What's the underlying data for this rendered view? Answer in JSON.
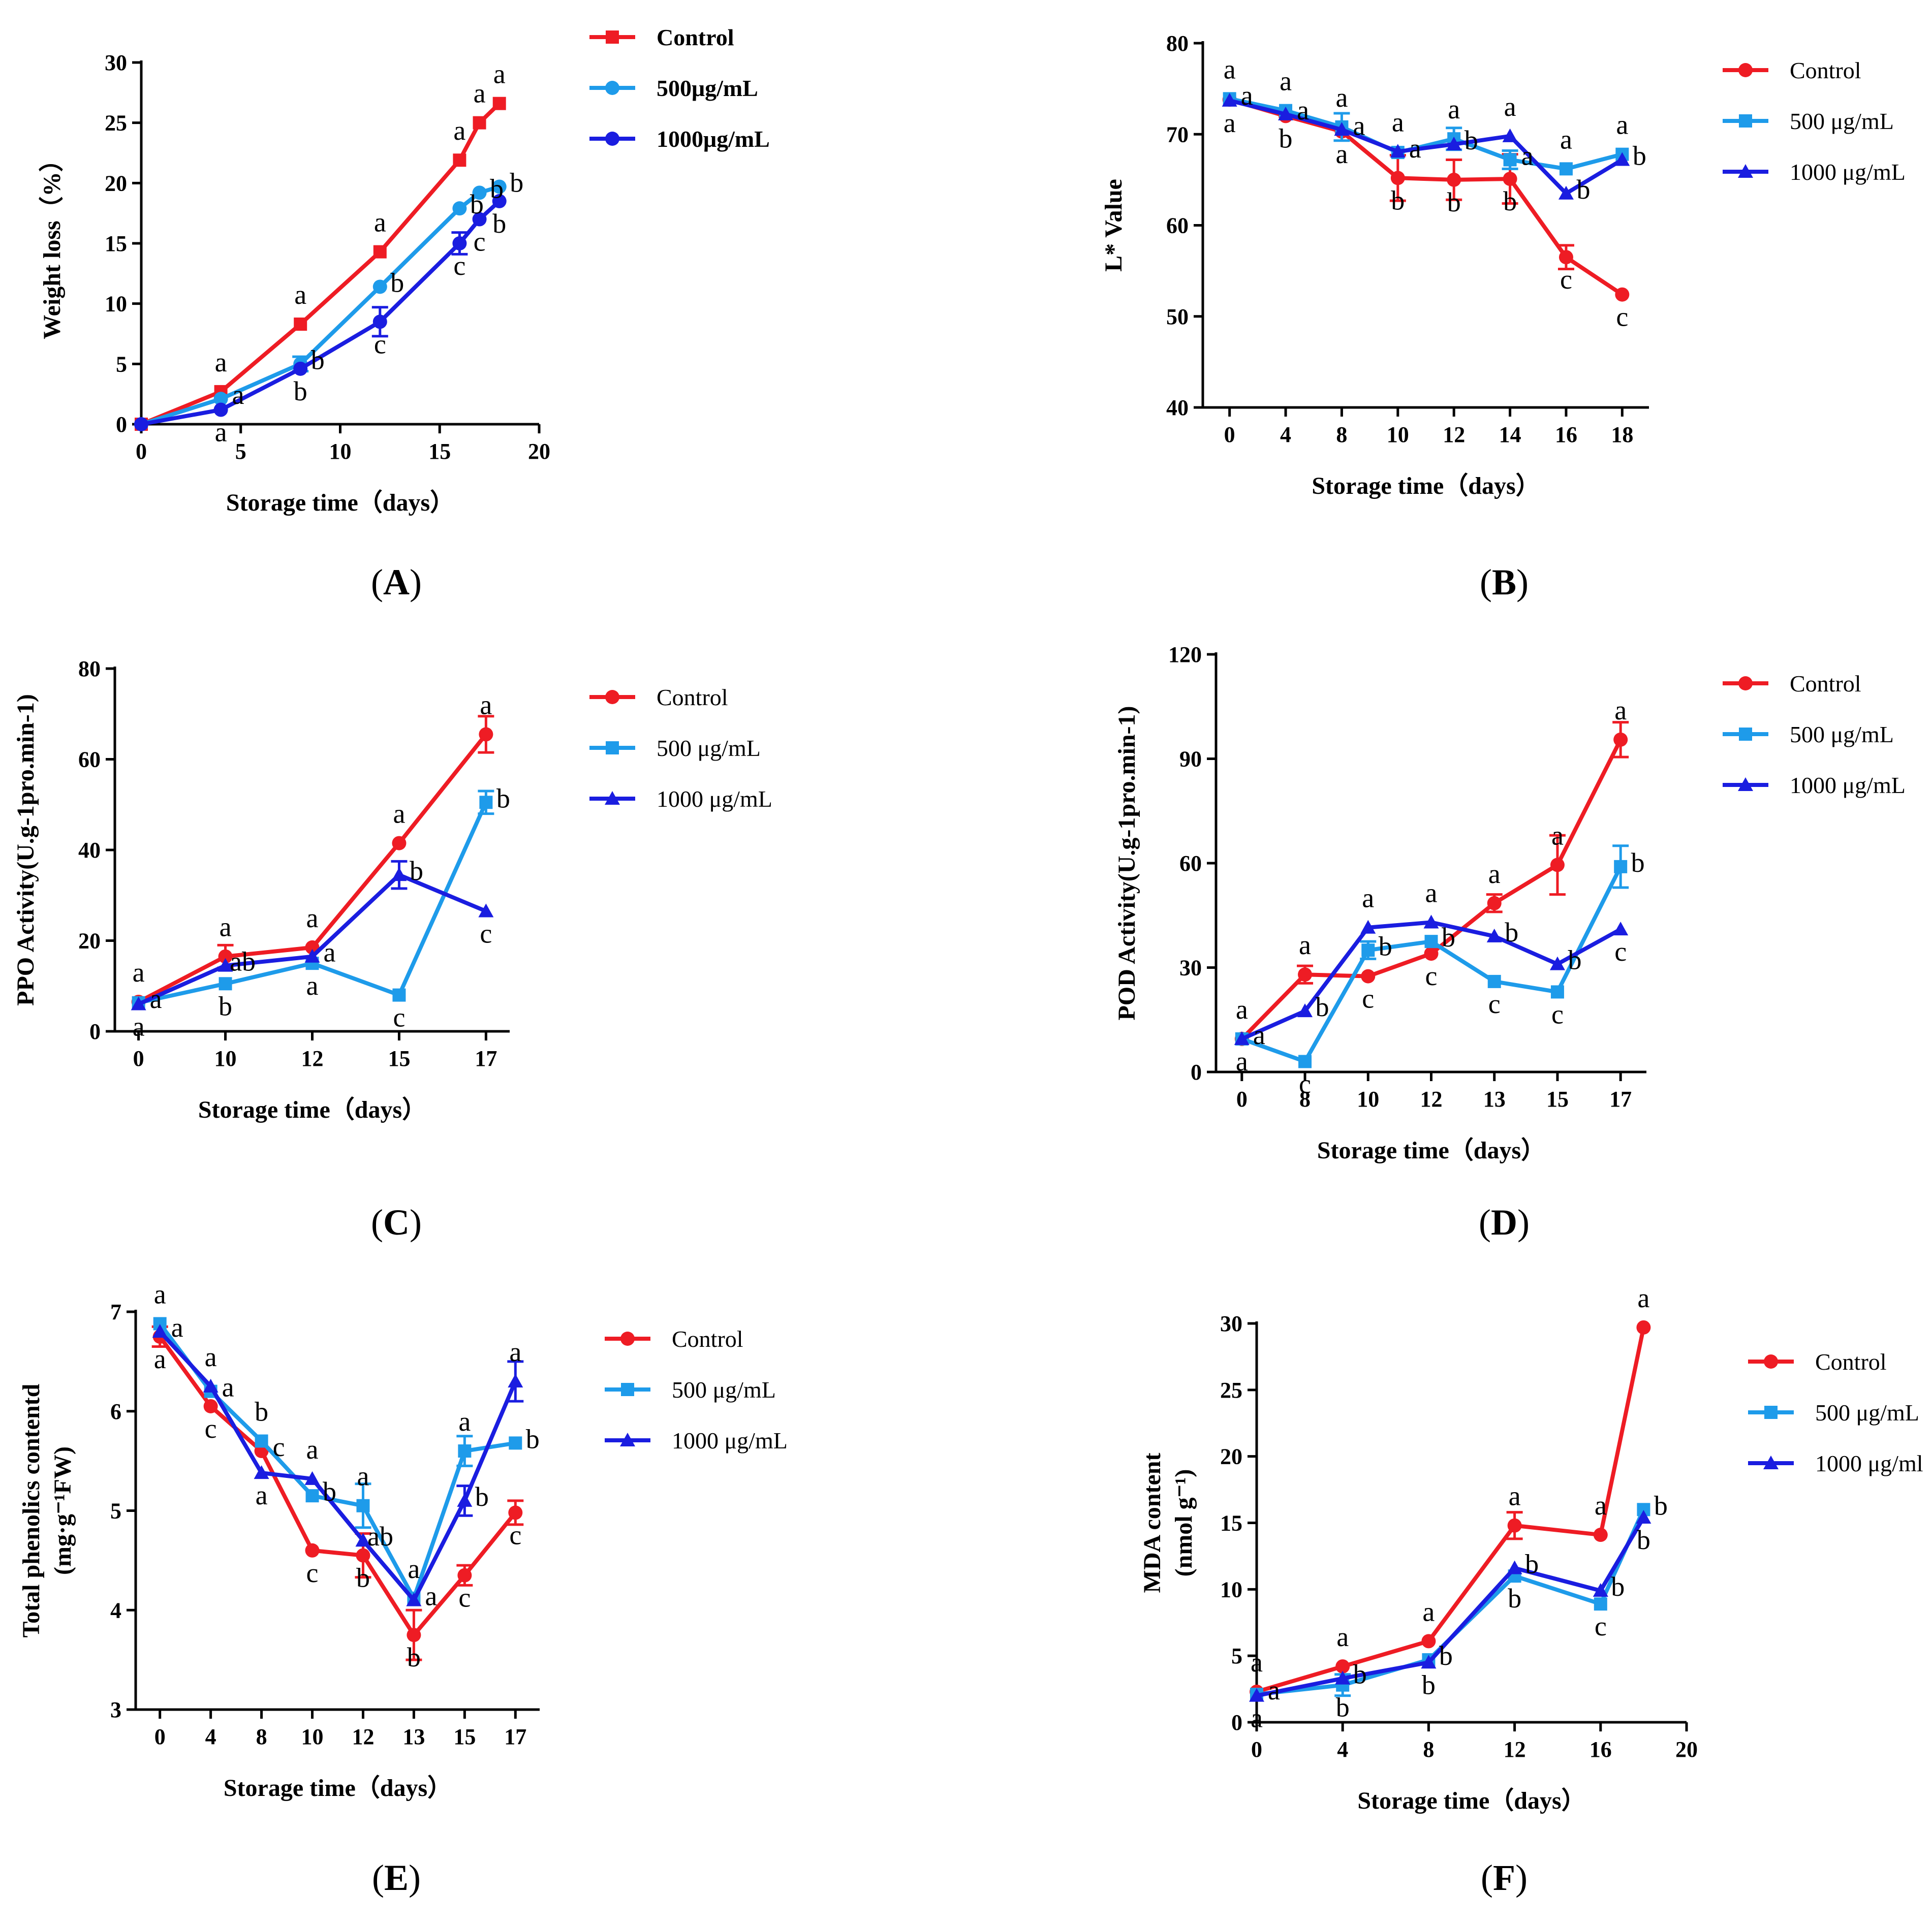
{
  "colors": {
    "control": "#ee1c24",
    "c500": "#1e9bea",
    "c1000": "#1a1de0"
  },
  "captions": [
    "A",
    "B",
    "C",
    "D",
    "E",
    "F"
  ],
  "chart_data": [
    {
      "id": "A",
      "type": "line",
      "title": "",
      "xlabel": "Storage time（days）",
      "ylabel": "Weight loss（%）",
      "xscale": "linear",
      "xlim": [
        0,
        20
      ],
      "ylim": [
        0,
        30
      ],
      "xticks": [
        0,
        5,
        10,
        15,
        20
      ],
      "xtick_labels": [
        "0",
        "5",
        "10",
        "15",
        "20"
      ],
      "yticks": [
        0,
        5,
        10,
        15,
        20,
        25,
        30
      ],
      "ytick_labels": [
        "0",
        "5",
        "10",
        "15",
        "20",
        "25",
        "30"
      ],
      "legend_bold": true,
      "series": [
        {
          "name": "Control",
          "color_key": "control",
          "marker": "square",
          "x": [
            0,
            4,
            8,
            12,
            16,
            17,
            18
          ],
          "y": [
            0,
            2.7,
            8.3,
            14.3,
            21.9,
            25.0,
            26.6
          ],
          "err": [
            0,
            0,
            0,
            0,
            0,
            0,
            0
          ],
          "letters": [
            "",
            "a",
            "a",
            "a",
            "a",
            "a",
            "a"
          ]
        },
        {
          "name": "500μg/mL",
          "color_key": "c500",
          "marker": "circle",
          "x": [
            0,
            4,
            8,
            12,
            16,
            17,
            18
          ],
          "y": [
            0,
            2.1,
            5.0,
            11.4,
            17.9,
            19.2,
            19.7
          ],
          "err": [
            0,
            0,
            0.6,
            0,
            0,
            0,
            0
          ],
          "letters": [
            "",
            "a",
            "b",
            "b",
            "b",
            "b",
            "b"
          ]
        },
        {
          "name": "1000μg/mL",
          "color_key": "c1000",
          "marker": "circle",
          "x": [
            0,
            4,
            8,
            12,
            16,
            17,
            18
          ],
          "y": [
            0,
            1.2,
            4.6,
            8.5,
            15.0,
            17.0,
            18.5
          ],
          "err": [
            0,
            0,
            0,
            1.2,
            0.9,
            0,
            0
          ],
          "letters": [
            "",
            "a",
            "b",
            "c",
            "c",
            "c",
            "b"
          ]
        }
      ]
    },
    {
      "id": "B",
      "type": "line",
      "title": "",
      "xlabel": "Storage time（days）",
      "ylabel": "L* Value",
      "xscale": "category",
      "ylim": [
        40,
        80
      ],
      "categories": [
        "0",
        "4",
        "8",
        "10",
        "12",
        "14",
        "16",
        "18"
      ],
      "yticks": [
        40,
        50,
        60,
        70,
        80
      ],
      "ytick_labels": [
        "40",
        "50",
        "60",
        "70",
        "80"
      ],
      "legend_bold": false,
      "series": [
        {
          "name": "Control",
          "color_key": "control",
          "marker": "circle",
          "y": [
            73.8,
            72.0,
            70.3,
            65.2,
            65.0,
            65.1,
            56.5,
            52.4
          ],
          "err": [
            0,
            0,
            0,
            2.5,
            2.2,
            2.7,
            1.3,
            0
          ],
          "letters": [
            "a",
            "b",
            "a",
            "b",
            "b",
            "b",
            "c",
            "c"
          ]
        },
        {
          "name": "500 μg/mL",
          "color_key": "c500",
          "marker": "square",
          "y": [
            73.9,
            72.6,
            70.8,
            68.0,
            69.5,
            67.2,
            66.2,
            67.8
          ],
          "err": [
            0,
            0,
            1.5,
            0,
            1.2,
            1.0,
            0,
            0
          ],
          "letters": [
            "a",
            "a",
            "a",
            "a",
            "a",
            "a",
            "a",
            "a"
          ]
        },
        {
          "name": "1000 μg/mL",
          "color_key": "c1000",
          "marker": "triangle",
          "y": [
            73.7,
            72.2,
            70.5,
            68.1,
            68.9,
            69.8,
            63.5,
            67.2
          ],
          "err": [
            0,
            0,
            0,
            0,
            0,
            0,
            0,
            0
          ],
          "letters": [
            "a",
            "a",
            "a",
            "a",
            "b",
            "a",
            "b",
            "b"
          ]
        }
      ]
    },
    {
      "id": "C",
      "type": "line",
      "title": "",
      "xlabel": "Storage time（days）",
      "ylabel": "PPO Activity(U.g-1pro.min-1)",
      "xscale": "category",
      "ylim": [
        0,
        80
      ],
      "categories": [
        "0",
        "10",
        "12",
        "15",
        "17"
      ],
      "yticks": [
        0,
        20,
        40,
        60,
        80
      ],
      "ytick_labels": [
        "0",
        "20",
        "40",
        "60",
        "80"
      ],
      "legend_bold": false,
      "series": [
        {
          "name": "Control",
          "color_key": "control",
          "marker": "circle",
          "y": [
            6.5,
            16.5,
            18.5,
            41.5,
            65.5
          ],
          "err": [
            0,
            2.5,
            0,
            0,
            4.0
          ],
          "letters": [
            "a",
            "a",
            "a",
            "a",
            "a"
          ]
        },
        {
          "name": "500 μg/mL",
          "color_key": "c500",
          "marker": "square",
          "y": [
            6.3,
            10.5,
            15.0,
            8.0,
            50.5
          ],
          "err": [
            0,
            0,
            0,
            0,
            2.5
          ],
          "letters": [
            "a",
            "b",
            "a",
            "c",
            "b"
          ]
        },
        {
          "name": "1000 μg/mL",
          "color_key": "c1000",
          "marker": "triangle",
          "y": [
            6.0,
            14.5,
            16.5,
            34.5,
            26.5
          ],
          "err": [
            0,
            0,
            0,
            3.0,
            0
          ],
          "letters": [
            "a",
            "ab",
            "a",
            "b",
            "c"
          ]
        }
      ]
    },
    {
      "id": "D",
      "type": "line",
      "title": "",
      "xlabel": "Storage time（days）",
      "ylabel": "POD Activity(U.g-1pro.min-1)",
      "xscale": "category",
      "ylim": [
        0,
        120
      ],
      "categories": [
        "0",
        "8",
        "10",
        "12",
        "13",
        "15",
        "17"
      ],
      "yticks": [
        0,
        30,
        60,
        90,
        120
      ],
      "ytick_labels": [
        "0",
        "30",
        "60",
        "90",
        "120"
      ],
      "legend_bold": false,
      "series": [
        {
          "name": "Control",
          "color_key": "control",
          "marker": "circle",
          "y": [
            9.5,
            28.0,
            27.5,
            34.0,
            48.5,
            59.5,
            95.5
          ],
          "err": [
            0,
            2.5,
            0,
            0,
            2.5,
            8.5,
            5.0
          ],
          "letters": [
            "a",
            "a",
            "c",
            "c",
            "a",
            "a",
            "a"
          ]
        },
        {
          "name": "500 μg/mL",
          "color_key": "c500",
          "marker": "square",
          "y": [
            9.5,
            3.0,
            35.0,
            37.5,
            26.0,
            23.0,
            59.0
          ],
          "err": [
            0,
            0,
            2.5,
            0,
            0,
            0,
            6.0
          ],
          "letters": [
            "a",
            "c",
            "b",
            "b",
            "c",
            "c",
            "b"
          ]
        },
        {
          "name": "1000 μg/mL",
          "color_key": "c1000",
          "marker": "triangle",
          "y": [
            9.5,
            17.5,
            41.5,
            43.0,
            39.0,
            31.0,
            41.0
          ],
          "err": [
            0,
            0,
            0,
            0,
            0,
            0,
            0
          ],
          "letters": [
            "a",
            "b",
            "a",
            "a",
            "b",
            "b",
            "c"
          ]
        }
      ]
    },
    {
      "id": "E",
      "type": "line",
      "title": "",
      "xlabel": "Storage time（days）",
      "ylabel": [
        "Total phenolics contentd",
        "(mg·g⁻¹FW)"
      ],
      "xscale": "category",
      "ylim": [
        3,
        7
      ],
      "categories": [
        "0",
        "4",
        "8",
        "10",
        "12",
        "13",
        "15",
        "17"
      ],
      "yticks": [
        3,
        4,
        5,
        6,
        7
      ],
      "ytick_labels": [
        "3",
        "4",
        "5",
        "6",
        "7"
      ],
      "legend_bold": false,
      "series": [
        {
          "name": "Control",
          "color_key": "control",
          "marker": "circle",
          "y": [
            6.75,
            6.05,
            5.6,
            4.6,
            4.55,
            3.75,
            4.35,
            4.98
          ],
          "err": [
            0.1,
            0,
            0,
            0,
            0.22,
            0.25,
            0.1,
            0.12
          ],
          "letters": [
            "a",
            "c",
            "c",
            "c",
            "b",
            "b",
            "c",
            "c"
          ]
        },
        {
          "name": "500 μg/mL",
          "color_key": "c500",
          "marker": "square",
          "y": [
            6.88,
            6.2,
            5.7,
            5.15,
            5.05,
            4.12,
            5.6,
            5.68
          ],
          "err": [
            0,
            0,
            0,
            0,
            0.22,
            0,
            0.15,
            0
          ],
          "letters": [
            "a",
            "a",
            "b",
            "b",
            "a",
            "a",
            "a",
            "b"
          ]
        },
        {
          "name": "1000 μg/mL",
          "color_key": "c1000",
          "marker": "triangle",
          "y": [
            6.8,
            6.25,
            5.38,
            5.32,
            4.7,
            4.1,
            5.1,
            6.3
          ],
          "err": [
            0,
            0,
            0,
            0,
            0,
            0,
            0.15,
            0.2
          ],
          "letters": [
            "a",
            "a",
            "a",
            "a",
            "ab",
            "a",
            "b",
            "a"
          ]
        }
      ]
    },
    {
      "id": "F",
      "type": "line",
      "title": "",
      "xlabel": "Storage time（days）",
      "ylabel": [
        "MDA content",
        "(nmol g⁻¹)"
      ],
      "xscale": "linear",
      "xlim": [
        0,
        20
      ],
      "ylim": [
        0,
        30
      ],
      "xticks": [
        0,
        4,
        8,
        12,
        16,
        20
      ],
      "xtick_labels": [
        "0",
        "4",
        "8",
        "12",
        "16",
        "20"
      ],
      "yticks": [
        0,
        5,
        10,
        15,
        20,
        25,
        30
      ],
      "ytick_labels": [
        "0",
        "5",
        "10",
        "15",
        "20",
        "25",
        "30"
      ],
      "legend_bold": false,
      "series": [
        {
          "name": "Control",
          "color_key": "control",
          "marker": "circle",
          "x": [
            0,
            4,
            8,
            12,
            16,
            18
          ],
          "y": [
            2.3,
            4.2,
            6.1,
            14.8,
            14.1,
            29.7
          ],
          "err": [
            0,
            0,
            0,
            1.0,
            0,
            0
          ],
          "letters": [
            "a",
            "a",
            "a",
            "a",
            "a",
            "a"
          ]
        },
        {
          "name": "500 μg/mL",
          "color_key": "c500",
          "marker": "square",
          "x": [
            0,
            4,
            8,
            12,
            16,
            18
          ],
          "y": [
            2.1,
            2.8,
            4.7,
            11.0,
            8.9,
            16.0
          ],
          "err": [
            0,
            0.8,
            0,
            0,
            0,
            0
          ],
          "letters": [
            "a",
            "b",
            "b",
            "b",
            "c",
            "b"
          ]
        },
        {
          "name": "1000 μg/ml",
          "color_key": "c1000",
          "marker": "triangle",
          "x": [
            0,
            4,
            8,
            12,
            16,
            18
          ],
          "y": [
            2.0,
            3.3,
            4.5,
            11.6,
            9.9,
            15.4
          ],
          "err": [
            0,
            0,
            0,
            0,
            0,
            0
          ],
          "letters": [
            "a",
            "b",
            "b",
            "b",
            "b",
            "b"
          ]
        }
      ]
    }
  ]
}
